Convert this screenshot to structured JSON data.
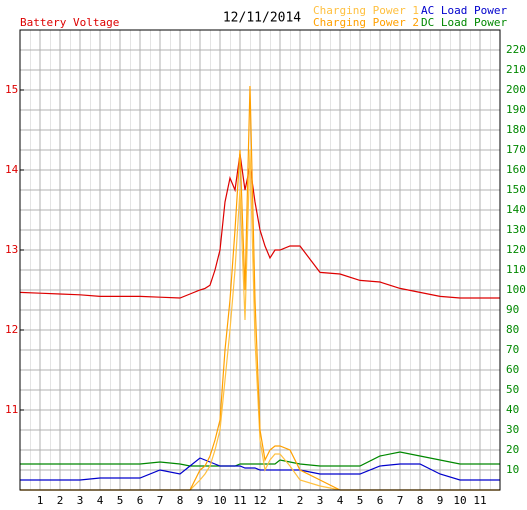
{
  "chart_data": {
    "type": "line",
    "title": "12/11/2014",
    "x": [
      0,
      1,
      2,
      3,
      4,
      5,
      6,
      7,
      8,
      8.5,
      9,
      9.25,
      9.5,
      9.75,
      10,
      10.25,
      10.5,
      10.75,
      11,
      11.25,
      11.5,
      11.75,
      12,
      12.25,
      12.5,
      12.75,
      13,
      13.5,
      14,
      15,
      16,
      17,
      18,
      19,
      20,
      21,
      22,
      23,
      24
    ],
    "xlim": [
      0,
      24
    ],
    "xticks": [
      1,
      2,
      3,
      4,
      5,
      6,
      7,
      8,
      9,
      10,
      11,
      12,
      {
        "value": 13,
        "label": "1"
      },
      {
        "value": 14,
        "label": "2"
      },
      {
        "value": 15,
        "label": "3"
      },
      {
        "value": 16,
        "label": "4"
      },
      {
        "value": 17,
        "label": "5"
      },
      {
        "value": 18,
        "label": "6"
      },
      {
        "value": 19,
        "label": "7"
      },
      {
        "value": 20,
        "label": "8"
      },
      {
        "value": 21,
        "label": "9"
      },
      {
        "value": 22,
        "label": "10"
      },
      {
        "value": 23,
        "label": "11"
      }
    ],
    "ylim": [
      10,
      15.75
    ],
    "yticks": [
      11,
      12,
      13,
      14,
      15
    ],
    "y2lim": [
      0,
      230
    ],
    "y2ticks": [
      10,
      20,
      30,
      40,
      50,
      60,
      70,
      80,
      90,
      100,
      110,
      120,
      130,
      140,
      150,
      160,
      170,
      180,
      190,
      200,
      210,
      220
    ],
    "grid": true,
    "series": [
      {
        "name": "Battery Voltage",
        "color": "#dd0000",
        "axis": "y",
        "values": [
          12.47,
          12.46,
          12.45,
          12.44,
          12.42,
          12.42,
          12.42,
          12.41,
          12.4,
          12.45,
          12.5,
          12.52,
          12.56,
          12.75,
          13.0,
          13.6,
          13.9,
          13.75,
          14.2,
          13.75,
          14.05,
          13.6,
          13.25,
          13.05,
          12.9,
          13.0,
          13.0,
          13.05,
          13.05,
          12.72,
          12.7,
          12.62,
          12.6,
          12.52,
          12.47,
          12.42,
          12.4,
          12.4,
          12.4
        ]
      },
      {
        "name": "Charging Power 1",
        "color": "#ffc040",
        "axis": "y2",
        "values": [
          0,
          0,
          0,
          0,
          0,
          0,
          0,
          0,
          0,
          0,
          5,
          8,
          12,
          20,
          30,
          55,
          80,
          110,
          150,
          85,
          170,
          75,
          25,
          10,
          15,
          18,
          18,
          12,
          5,
          2,
          0,
          0,
          0,
          0,
          0,
          0,
          0,
          0,
          0
        ]
      },
      {
        "name": "Charging Power 2",
        "color": "#ffa000",
        "axis": "y2",
        "values": [
          0,
          0,
          0,
          0,
          0,
          0,
          0,
          0,
          0,
          0,
          10,
          12,
          17,
          25,
          35,
          70,
          95,
          130,
          170,
          100,
          202,
          95,
          30,
          15,
          20,
          22,
          22,
          20,
          10,
          5,
          0,
          0,
          0,
          0,
          0,
          0,
          0,
          0,
          0
        ]
      },
      {
        "name": "AC Load Power",
        "color": "#0000cc",
        "axis": "y2",
        "values": [
          5,
          5,
          5,
          5,
          6,
          6,
          6,
          10,
          8,
          12,
          16,
          15,
          14,
          13,
          12,
          12,
          12,
          12,
          12,
          11,
          11,
          11,
          10,
          10,
          10,
          10,
          10,
          10,
          10,
          8,
          8,
          8,
          12,
          13,
          13,
          8,
          5,
          5,
          5
        ]
      },
      {
        "name": "DC Load Power",
        "color": "#008800",
        "axis": "y2",
        "values": [
          13,
          13,
          13,
          13,
          13,
          13,
          13,
          14,
          13,
          12,
          12,
          12,
          12,
          12,
          12,
          12,
          12,
          12,
          13,
          13,
          13,
          13,
          13,
          13,
          13,
          13,
          15,
          14,
          13,
          12,
          12,
          12,
          17,
          19,
          17,
          15,
          13,
          13,
          13
        ]
      }
    ]
  }
}
